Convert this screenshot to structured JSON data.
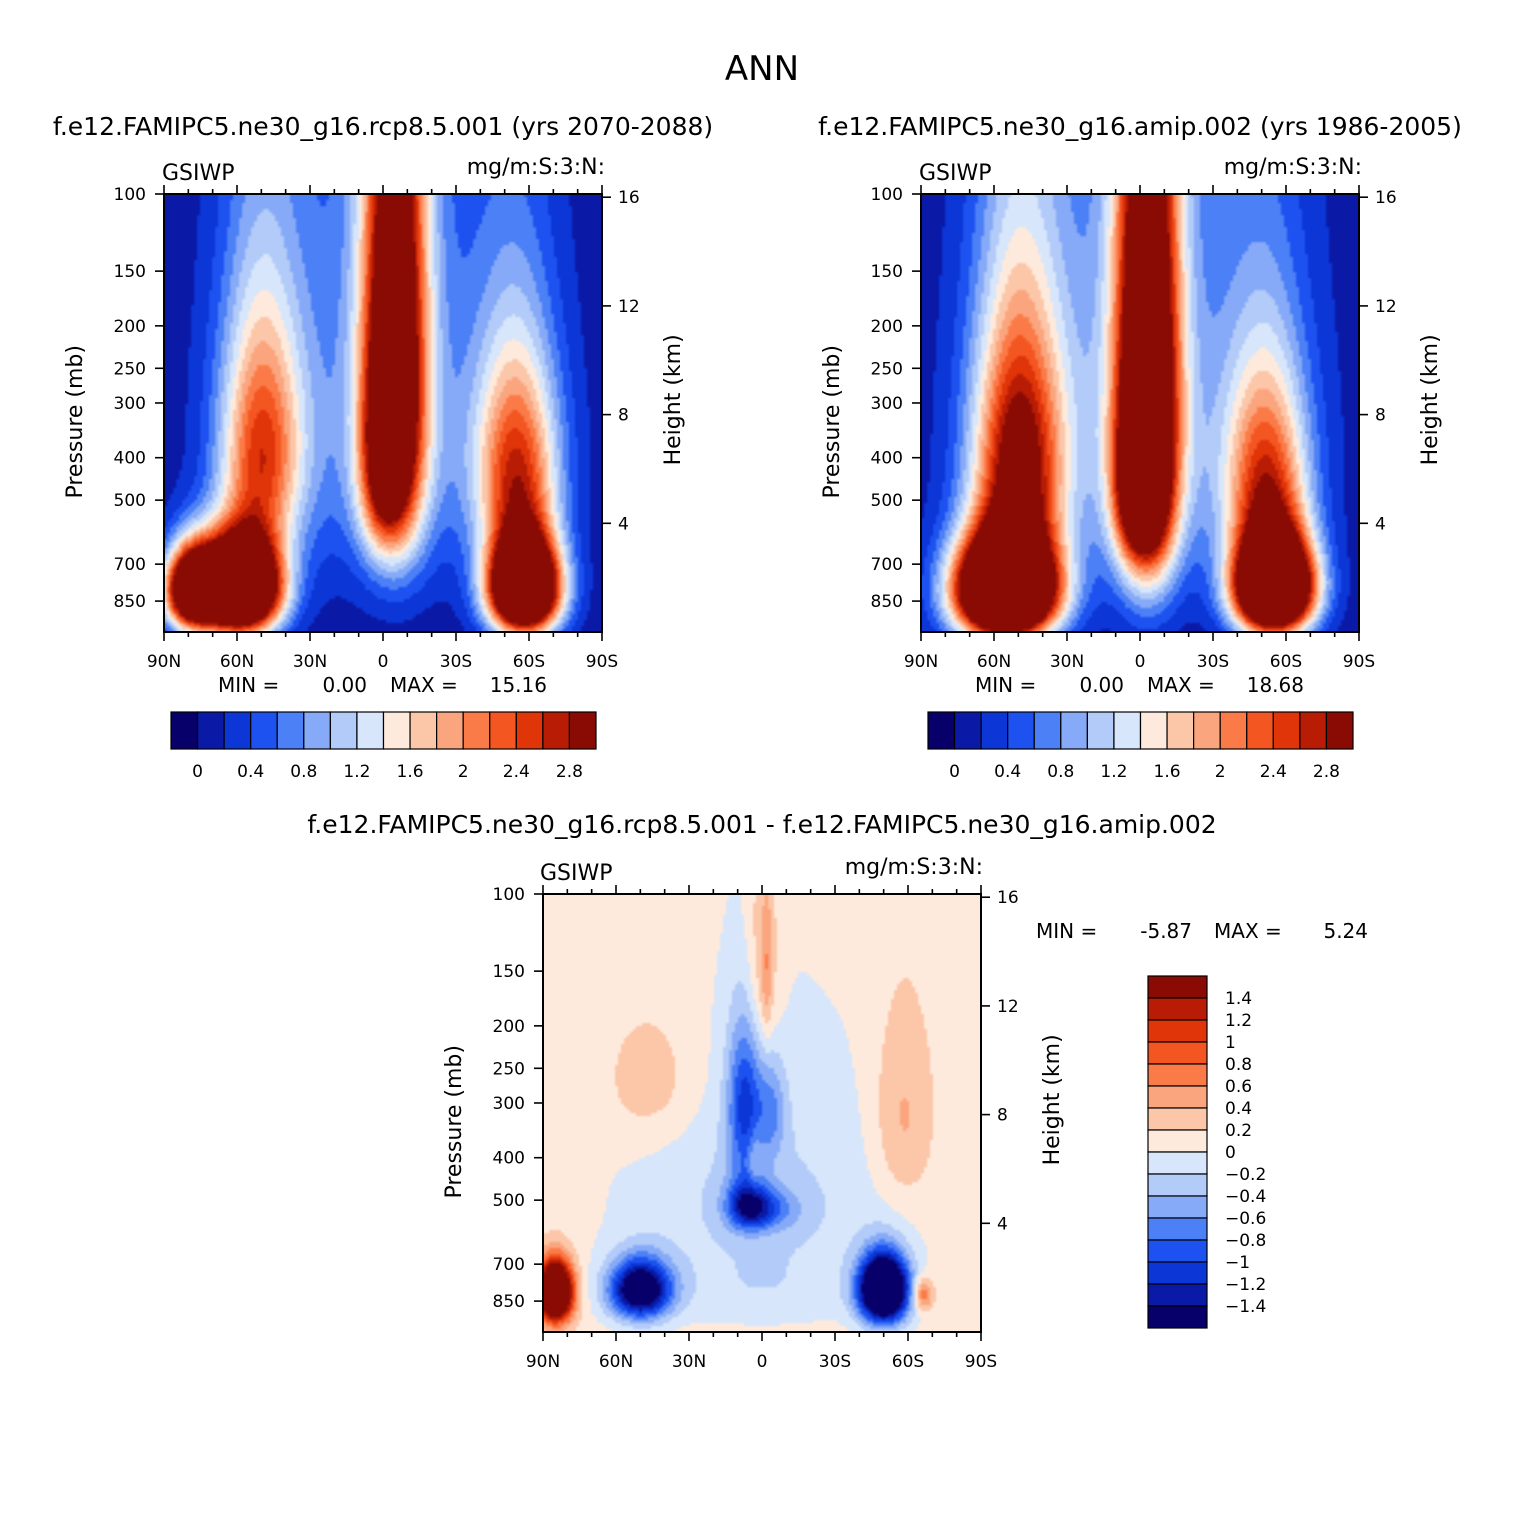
{
  "page_title": "ANN",
  "chart_data": [
    {
      "type": "heatmap",
      "id": "left",
      "title": "f.e12.FAMIPC5.ne30_g16.rcp8.5.001 (yrs 2070-2088)",
      "left_label": "GSIWP",
      "right_label": "mg/m:S:3:N:",
      "ylabel": "Pressure (mb)",
      "y2label": "Height (km)",
      "x_ticks": [
        "90N",
        "60N",
        "30N",
        "0",
        "30S",
        "60S",
        "90S"
      ],
      "pressure_ticks": [
        100,
        150,
        200,
        250,
        300,
        400,
        500,
        700,
        850
      ],
      "height_ticks": [
        16,
        12,
        8,
        4
      ],
      "stats": {
        "min_label": "MIN =",
        "min": "0.00",
        "max_label": "MAX =",
        "max": "15.16"
      },
      "colorbar_ticks": [
        "0",
        "0.4",
        "0.8",
        "1.2",
        "1.6",
        "2",
        "2.4",
        "2.8"
      ],
      "colorbar_levels": [
        -0.2,
        0,
        0.2,
        0.4,
        0.6,
        0.8,
        1.0,
        1.2,
        1.4,
        1.6,
        1.8,
        2.0,
        2.2,
        2.4,
        2.6,
        2.8,
        3.0
      ],
      "colorbar_colors": [
        "#08006a",
        "#0a1aa6",
        "#0c36d6",
        "#1d52f0",
        "#4c80f6",
        "#86aaf7",
        "#b2cbf8",
        "#d7e6fb",
        "#feeadc",
        "#fcc6a8",
        "#fba57e",
        "#fb7b48",
        "#f45622",
        "#e03409",
        "#b81c05",
        "#8a0b04"
      ],
      "fields": {
        "base": 0.05,
        "blobs": [
          {
            "lat": -5,
            "p": 240,
            "slat": 9,
            "sp": 260,
            "amp": 3.5
          },
          {
            "lat": 0,
            "p": 420,
            "slat": 7,
            "sp": 140,
            "amp": 1.3
          },
          {
            "lat": 58,
            "p": 790,
            "slat": 11,
            "sp": 140,
            "amp": 6.0
          },
          {
            "lat": 78,
            "p": 800,
            "slat": 8,
            "sp": 120,
            "amp": 4.5
          },
          {
            "lat": 50,
            "p": 380,
            "slat": 12,
            "sp": 180,
            "amp": 2.2
          },
          {
            "lat": -58,
            "p": 790,
            "slat": 10,
            "sp": 140,
            "amp": 6.0
          },
          {
            "lat": -55,
            "p": 420,
            "slat": 12,
            "sp": 170,
            "amp": 2.3
          },
          {
            "lat": 0,
            "p": 300,
            "slat": 38,
            "sp": 300,
            "amp": 0.7
          }
        ]
      }
    },
    {
      "type": "heatmap",
      "id": "right",
      "title": "f.e12.FAMIPC5.ne30_g16.amip.002 (yrs 1986-2005)",
      "left_label": "GSIWP",
      "right_label": "mg/m:S:3:N:",
      "ylabel": "Pressure (mb)",
      "y2label": "Height (km)",
      "x_ticks": [
        "90N",
        "60N",
        "30N",
        "0",
        "30S",
        "60S",
        "90S"
      ],
      "pressure_ticks": [
        100,
        150,
        200,
        250,
        300,
        400,
        500,
        700,
        850
      ],
      "height_ticks": [
        16,
        12,
        8,
        4
      ],
      "stats": {
        "min_label": "MIN =",
        "min": "0.00",
        "max_label": "MAX =",
        "max": "18.68"
      },
      "colorbar_ticks": [
        "0",
        "0.4",
        "0.8",
        "1.2",
        "1.6",
        "2",
        "2.4",
        "2.8"
      ],
      "colorbar_levels": [
        -0.2,
        0,
        0.2,
        0.4,
        0.6,
        0.8,
        1.0,
        1.2,
        1.4,
        1.6,
        1.8,
        2.0,
        2.2,
        2.4,
        2.6,
        2.8,
        3.0
      ],
      "colorbar_colors": [
        "#08006a",
        "#0a1aa6",
        "#0c36d6",
        "#1d52f0",
        "#4c80f6",
        "#86aaf7",
        "#b2cbf8",
        "#d7e6fb",
        "#feeadc",
        "#fcc6a8",
        "#fba57e",
        "#fb7b48",
        "#f45622",
        "#e03409",
        "#b81c05",
        "#8a0b04"
      ],
      "fields": {
        "base": 0.05,
        "blobs": [
          {
            "lat": -3,
            "p": 300,
            "slat": 9,
            "sp": 300,
            "amp": 4.0
          },
          {
            "lat": 0,
            "p": 480,
            "slat": 7,
            "sp": 120,
            "amp": 1.8
          },
          {
            "lat": 55,
            "p": 800,
            "slat": 14,
            "sp": 150,
            "amp": 7.0
          },
          {
            "lat": 50,
            "p": 400,
            "slat": 13,
            "sp": 200,
            "amp": 2.8
          },
          {
            "lat": -55,
            "p": 790,
            "slat": 11,
            "sp": 140,
            "amp": 6.5
          },
          {
            "lat": -52,
            "p": 450,
            "slat": 12,
            "sp": 180,
            "amp": 2.2
          },
          {
            "lat": 0,
            "p": 300,
            "slat": 40,
            "sp": 300,
            "amp": 0.8
          }
        ]
      }
    },
    {
      "type": "heatmap",
      "id": "diff",
      "title": "f.e12.FAMIPC5.ne30_g16.rcp8.5.001 - f.e12.FAMIPC5.ne30_g16.amip.002",
      "left_label": "GSIWP",
      "right_label": "mg/m:S:3:N:",
      "ylabel": "Pressure (mb)",
      "y2label": "Height (km)",
      "x_ticks": [
        "90N",
        "60N",
        "30N",
        "0",
        "30S",
        "60S",
        "90S"
      ],
      "pressure_ticks": [
        100,
        150,
        200,
        250,
        300,
        400,
        500,
        700,
        850
      ],
      "height_ticks": [
        16,
        12,
        8,
        4
      ],
      "stats": {
        "min_label": "MIN =",
        "min": "-5.87",
        "max_label": "MAX =",
        "max": "5.24"
      },
      "colorbar_ticks": [
        "1.4",
        "1.2",
        "1",
        "0.8",
        "0.6",
        "0.4",
        "0.2",
        "0",
        "-0.2",
        "-0.4",
        "-0.6",
        "-0.8",
        "-1",
        "-1.2",
        "-1.4"
      ],
      "colorbar_levels": [
        -1.6,
        -1.4,
        -1.2,
        -1.0,
        -0.8,
        -0.6,
        -0.4,
        -0.2,
        0,
        0.2,
        0.4,
        0.6,
        0.8,
        1.0,
        1.2,
        1.4,
        1.6
      ],
      "colorbar_colors": [
        "#08006a",
        "#0a1aa6",
        "#0c36d6",
        "#1d52f0",
        "#4c80f6",
        "#86aaf7",
        "#b2cbf8",
        "#d7e6fb",
        "#feeadc",
        "#fcc6a8",
        "#fba57e",
        "#fb7b48",
        "#f45622",
        "#e03409",
        "#b81c05",
        "#8a0b04"
      ],
      "fields": {
        "base": 0.1,
        "blobs": [
          {
            "lat": 0,
            "p": 500,
            "slat": 40,
            "sp": 230,
            "amp": -0.35
          },
          {
            "lat": 0,
            "p": 820,
            "slat": 30,
            "sp": 100,
            "amp": -0.15
          },
          {
            "lat": 50,
            "p": 800,
            "slat": 9,
            "sp": 90,
            "amp": -2.0
          },
          {
            "lat": -50,
            "p": 800,
            "slat": 7,
            "sp": 100,
            "amp": -3.0
          },
          {
            "lat": 85,
            "p": 810,
            "slat": 5,
            "sp": 90,
            "amp": 3.0
          },
          {
            "lat": -66,
            "p": 820,
            "slat": 3,
            "sp": 50,
            "amp": 0.8
          },
          {
            "lat": 7,
            "p": 300,
            "slat": 5,
            "sp": 90,
            "amp": -1.0
          },
          {
            "lat": -4,
            "p": 310,
            "slat": 4,
            "sp": 60,
            "amp": -0.5
          },
          {
            "lat": 6,
            "p": 510,
            "slat": 6,
            "sp": 50,
            "amp": -1.0
          },
          {
            "lat": -2,
            "p": 525,
            "slat": 9,
            "sp": 40,
            "amp": -0.6
          },
          {
            "lat": 0,
            "p": 150,
            "slat": 5,
            "sp": 60,
            "amp": 0.4
          },
          {
            "lat": -2,
            "p": 150,
            "slat": 1.5,
            "sp": 40,
            "amp": 0.3
          },
          {
            "lat": 45,
            "p": 270,
            "slat": 14,
            "sp": 70,
            "amp": 0.3
          },
          {
            "lat": -58,
            "p": 330,
            "slat": 9,
            "sp": 120,
            "amp": 0.4
          },
          {
            "lat": 3,
            "p": 410,
            "slat": 2,
            "sp": 50,
            "amp": 0.3
          }
        ]
      }
    }
  ]
}
